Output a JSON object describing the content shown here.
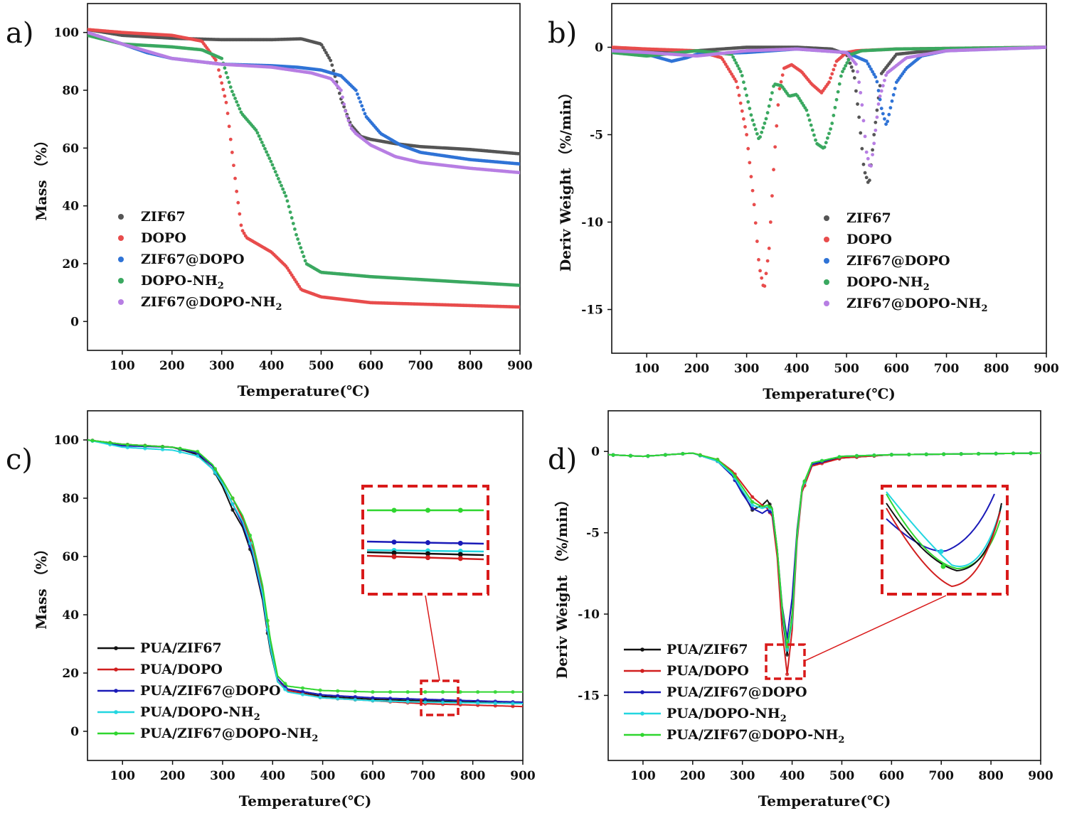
{
  "colors": {
    "ZIF67": "#555555",
    "DOPO": "#e84c4c",
    "ZIF67@DOPO": "#2f73d6",
    "DOPO-NH2": "#3aa860",
    "ZIF67@DOPO-NH2": "#b77ee3",
    "PUA/ZIF67": "#111111",
    "PUA/DOPO": "#d11f1f",
    "PUA/ZIF67@DOPO": "#1a1ab8",
    "PUA/DOPO-NH2": "#22d6e0",
    "PUA/ZIF67@DOPO-NH2": "#2fd62f",
    "inset_box": "#d91a1a"
  },
  "chart_data": [
    {
      "panel": "a)",
      "type": "scatter",
      "xlabel": "Temperature(℃)",
      "ylabel": "Mass （%）",
      "xlim": [
        30,
        900
      ],
      "ylim": [
        -10,
        110
      ],
      "xticks": [
        100,
        200,
        300,
        400,
        500,
        600,
        700,
        800,
        900
      ],
      "yticks": [
        0,
        20,
        40,
        60,
        80,
        100
      ],
      "legend_position": "bottom-left",
      "series": [
        {
          "name": "ZIF67",
          "sub": "",
          "color_key": "ZIF67",
          "x": [
            30,
            100,
            200,
            300,
            400,
            460,
            500,
            520,
            540,
            560,
            580,
            600,
            650,
            700,
            800,
            900
          ],
          "y": [
            101,
            99,
            98,
            97.5,
            97.5,
            97.8,
            96,
            90,
            77,
            68,
            64,
            63,
            61.5,
            60.5,
            59.5,
            58
          ]
        },
        {
          "name": "DOPO",
          "sub": "",
          "color_key": "DOPO",
          "x": [
            30,
            100,
            200,
            260,
            290,
            310,
            320,
            330,
            340,
            350,
            360,
            400,
            430,
            460,
            500,
            600,
            700,
            900
          ],
          "y": [
            101,
            100,
            99,
            97,
            90,
            75,
            60,
            45,
            32,
            29,
            28,
            24,
            19,
            11,
            8.5,
            6.5,
            6,
            5
          ]
        },
        {
          "name": "ZIF67@DOPO",
          "sub": "",
          "color_key": "ZIF67@DOPO",
          "x": [
            30,
            100,
            150,
            200,
            300,
            400,
            450,
            500,
            540,
            570,
            590,
            620,
            660,
            700,
            800,
            900
          ],
          "y": [
            100,
            96,
            93,
            91,
            89,
            88.5,
            88,
            87,
            85,
            80,
            71,
            65,
            61,
            58.5,
            56,
            54.5
          ]
        },
        {
          "name": "DOPO-NH",
          "sub": "2",
          "color_key": "DOPO-NH2",
          "x": [
            30,
            100,
            200,
            260,
            300,
            320,
            340,
            370,
            400,
            430,
            450,
            470,
            500,
            600,
            700,
            800,
            900
          ],
          "y": [
            99,
            96,
            95,
            94,
            91,
            80,
            72,
            66,
            55,
            43,
            30,
            20,
            17,
            15.5,
            14.5,
            13.5,
            12.5
          ]
        },
        {
          "name": "ZIF67@DOPO-NH",
          "sub": "2",
          "color_key": "ZIF67@DOPO-NH2",
          "x": [
            30,
            100,
            200,
            300,
            400,
            480,
            520,
            540,
            550,
            560,
            570,
            600,
            650,
            700,
            800,
            900
          ],
          "y": [
            100,
            96,
            91,
            89,
            88,
            86,
            84,
            80,
            72,
            67,
            65,
            61,
            57,
            55,
            53,
            51.5
          ]
        }
      ]
    },
    {
      "panel": "b)",
      "type": "scatter",
      "xlabel": "Temperature(℃)",
      "ylabel": "Deriv Weight （%/min）",
      "xlim": [
        30,
        900
      ],
      "ylim": [
        -17.5,
        2.5
      ],
      "xticks": [
        100,
        200,
        300,
        400,
        500,
        600,
        700,
        800,
        900
      ],
      "yticks": [
        0,
        -5,
        -10,
        -15
      ],
      "legend_position": "bottom-right",
      "series": [
        {
          "name": "ZIF67",
          "sub": "",
          "color_key": "ZIF67",
          "x": [
            30,
            100,
            200,
            300,
            400,
            470,
            500,
            515,
            525,
            535,
            545,
            555,
            570,
            600,
            700,
            900
          ],
          "y": [
            -0.1,
            -0.2,
            -0.2,
            0,
            0,
            -0.1,
            -0.4,
            -1.5,
            -4,
            -7,
            -7.9,
            -5,
            -1.5,
            -0.4,
            -0.1,
            0
          ]
        },
        {
          "name": "DOPO",
          "sub": "",
          "color_key": "DOPO",
          "x": [
            30,
            100,
            200,
            250,
            280,
            300,
            315,
            325,
            335,
            345,
            355,
            365,
            375,
            390,
            410,
            430,
            450,
            465,
            480,
            500,
            520,
            600,
            900
          ],
          "y": [
            0,
            -0.1,
            -0.2,
            -0.6,
            -2,
            -5,
            -9,
            -12.5,
            -13.9,
            -11.5,
            -6.5,
            -2.5,
            -1.2,
            -1.0,
            -1.4,
            -2.1,
            -2.6,
            -2,
            -0.8,
            -0.3,
            -0.2,
            -0.1,
            0
          ]
        },
        {
          "name": "ZIF67@DOPO",
          "sub": "",
          "color_key": "ZIF67@DOPO",
          "x": [
            30,
            100,
            150,
            180,
            200,
            300,
            400,
            500,
            540,
            560,
            570,
            580,
            590,
            600,
            620,
            650,
            700,
            900
          ],
          "y": [
            -0.2,
            -0.4,
            -0.8,
            -0.6,
            -0.4,
            -0.3,
            -0.1,
            -0.3,
            -0.8,
            -1.8,
            -3.5,
            -4.5,
            -3.2,
            -2,
            -1.2,
            -0.5,
            -0.2,
            0
          ]
        },
        {
          "name": "DOPO-NH",
          "sub": "2",
          "color_key": "DOPO-NH2",
          "x": [
            30,
            100,
            200,
            270,
            290,
            310,
            325,
            340,
            355,
            370,
            385,
            400,
            420,
            440,
            455,
            470,
            490,
            510,
            530,
            600,
            900
          ],
          "y": [
            -0.3,
            -0.5,
            -0.2,
            -0.4,
            -1.5,
            -4,
            -5.3,
            -4,
            -2.1,
            -2.2,
            -2.8,
            -2.7,
            -3.6,
            -5.5,
            -5.8,
            -4.5,
            -1.5,
            -0.4,
            -0.2,
            -0.1,
            0
          ]
        },
        {
          "name": "ZIF67@DOPO-NH",
          "sub": "2",
          "color_key": "ZIF67@DOPO-NH2",
          "x": [
            30,
            100,
            200,
            300,
            400,
            500,
            520,
            530,
            540,
            548,
            555,
            565,
            580,
            620,
            700,
            900
          ],
          "y": [
            -0.2,
            -0.3,
            -0.5,
            -0.2,
            -0.1,
            -0.3,
            -1,
            -3,
            -6,
            -7,
            -5.5,
            -3,
            -1.5,
            -0.6,
            -0.2,
            0
          ]
        }
      ]
    },
    {
      "panel": "c)",
      "type": "line",
      "xlabel": "Temperature(℃)",
      "ylabel": "Mass （%）",
      "xlim": [
        30,
        900
      ],
      "ylim": [
        -10,
        110
      ],
      "xticks": [
        100,
        200,
        300,
        400,
        500,
        600,
        700,
        800,
        900
      ],
      "yticks": [
        0,
        20,
        40,
        60,
        80,
        100
      ],
      "legend_position": "bottom-left",
      "series": [
        {
          "name": "PUA/ZIF67",
          "sub": "",
          "color_key": "PUA/ZIF67",
          "x": [
            30,
            100,
            200,
            250,
            280,
            300,
            320,
            340,
            360,
            380,
            395,
            410,
            430,
            500,
            600,
            700,
            900
          ],
          "y": [
            100,
            98.5,
            97.5,
            95,
            90,
            84,
            76,
            70,
            60,
            45,
            28,
            17,
            14,
            12,
            11,
            10.5,
            9.5
          ]
        },
        {
          "name": "PUA/DOPO",
          "sub": "",
          "color_key": "PUA/DOPO",
          "x": [
            30,
            100,
            200,
            250,
            280,
            300,
            320,
            340,
            360,
            380,
            395,
            410,
            430,
            500,
            600,
            700,
            900
          ],
          "y": [
            100,
            98.5,
            97.5,
            95.5,
            91,
            86,
            80,
            73,
            63,
            48,
            30,
            18,
            14,
            11.5,
            10.5,
            9.5,
            8.5
          ]
        },
        {
          "name": "PUA/ZIF67@DOPO",
          "sub": "",
          "color_key": "PUA/ZIF67@DOPO",
          "x": [
            30,
            100,
            200,
            250,
            280,
            300,
            320,
            340,
            360,
            380,
            395,
            410,
            430,
            500,
            600,
            700,
            900
          ],
          "y": [
            100,
            98,
            97.5,
            95.5,
            91,
            85,
            78,
            71,
            61,
            46,
            29,
            18,
            14.5,
            12.5,
            11.5,
            11,
            10
          ]
        },
        {
          "name": "PUA/DOPO-NH",
          "sub": "2",
          "color_key": "PUA/DOPO-NH2",
          "x": [
            30,
            100,
            200,
            250,
            280,
            300,
            320,
            340,
            360,
            380,
            395,
            410,
            430,
            500,
            600,
            700,
            900
          ],
          "y": [
            100,
            97.5,
            96.5,
            94.5,
            90,
            85,
            78,
            72,
            62,
            47,
            29,
            17,
            13.5,
            11.5,
            10.5,
            10,
            9.5
          ]
        },
        {
          "name": "PUA/ZIF67@DOPO-NH",
          "sub": "2",
          "color_key": "PUA/ZIF67@DOPO-NH2",
          "x": [
            30,
            100,
            200,
            250,
            280,
            300,
            320,
            340,
            360,
            380,
            395,
            410,
            430,
            500,
            600,
            700,
            900
          ],
          "y": [
            100,
            98.5,
            97.5,
            96,
            91.5,
            86,
            80,
            74,
            65,
            50,
            32,
            19,
            15.5,
            14,
            13.5,
            13.5,
            13.5
          ]
        }
      ]
    },
    {
      "panel": "d)",
      "type": "line",
      "xlabel": "Temperature(℃)",
      "ylabel": "Deriv Weight （%/min）",
      "xlim": [
        30,
        900
      ],
      "ylim": [
        -19,
        2.5
      ],
      "xticks": [
        100,
        200,
        300,
        400,
        500,
        600,
        700,
        800,
        900
      ],
      "yticks": [
        0,
        -5,
        -10,
        -15
      ],
      "legend_position": "bottom-left",
      "series": [
        {
          "name": "PUA/ZIF67",
          "sub": "",
          "color_key": "PUA/ZIF67",
          "x": [
            30,
            100,
            150,
            200,
            250,
            280,
            300,
            320,
            340,
            350,
            360,
            370,
            380,
            390,
            400,
            410,
            420,
            440,
            500,
            600,
            900
          ],
          "y": [
            -0.2,
            -0.3,
            -0.2,
            -0.1,
            -0.6,
            -1.5,
            -2.5,
            -3.6,
            -3.3,
            -3.0,
            -3.5,
            -6,
            -10,
            -12.5,
            -10,
            -5,
            -2.3,
            -0.8,
            -0.4,
            -0.2,
            -0.1
          ]
        },
        {
          "name": "PUA/DOPO",
          "sub": "",
          "color_key": "PUA/DOPO",
          "x": [
            30,
            100,
            150,
            200,
            250,
            280,
            300,
            320,
            340,
            350,
            360,
            370,
            380,
            390,
            400,
            410,
            420,
            440,
            500,
            600,
            900
          ],
          "y": [
            -0.2,
            -0.3,
            -0.2,
            -0.1,
            -0.5,
            -1.2,
            -2.0,
            -2.8,
            -3.3,
            -3.5,
            -4.0,
            -6.5,
            -11,
            -13.7,
            -11,
            -5.5,
            -2.5,
            -0.9,
            -0.4,
            -0.2,
            -0.1
          ]
        },
        {
          "name": "PUA/ZIF67@DOPO",
          "sub": "",
          "color_key": "PUA/ZIF67@DOPO",
          "x": [
            30,
            100,
            150,
            200,
            250,
            280,
            300,
            320,
            340,
            350,
            360,
            370,
            380,
            390,
            400,
            410,
            420,
            440,
            500,
            600,
            900
          ],
          "y": [
            -0.2,
            -0.3,
            -0.2,
            -0.1,
            -0.6,
            -1.5,
            -2.6,
            -3.5,
            -3.8,
            -3.6,
            -3.8,
            -6,
            -9.5,
            -11.5,
            -9,
            -4.8,
            -2.2,
            -0.8,
            -0.3,
            -0.2,
            -0.1
          ]
        },
        {
          "name": "PUA/DOPO-NH",
          "sub": "2",
          "color_key": "PUA/DOPO-NH2",
          "x": [
            30,
            100,
            150,
            200,
            250,
            280,
            300,
            320,
            340,
            350,
            360,
            370,
            380,
            390,
            400,
            410,
            420,
            440,
            500,
            600,
            900
          ],
          "y": [
            -0.2,
            -0.3,
            -0.2,
            -0.1,
            -0.6,
            -1.4,
            -2.4,
            -3.3,
            -3.5,
            -3.4,
            -3.6,
            -6,
            -9.8,
            -12.2,
            -10.5,
            -5.2,
            -2.3,
            -0.7,
            -0.3,
            -0.2,
            -0.1
          ]
        },
        {
          "name": "PUA/ZIF67@DOPO-NH",
          "sub": "2",
          "color_key": "PUA/ZIF67@DOPO-NH2",
          "x": [
            30,
            100,
            150,
            200,
            250,
            280,
            300,
            320,
            340,
            350,
            360,
            370,
            380,
            390,
            400,
            410,
            420,
            440,
            500,
            600,
            900
          ],
          "y": [
            -0.2,
            -0.3,
            -0.2,
            -0.1,
            -0.5,
            -1.3,
            -2.2,
            -3.1,
            -3.4,
            -3.3,
            -3.5,
            -6,
            -9.6,
            -12.0,
            -10.2,
            -5.0,
            -2.2,
            -0.7,
            -0.3,
            -0.2,
            -0.1
          ]
        }
      ]
    }
  ]
}
